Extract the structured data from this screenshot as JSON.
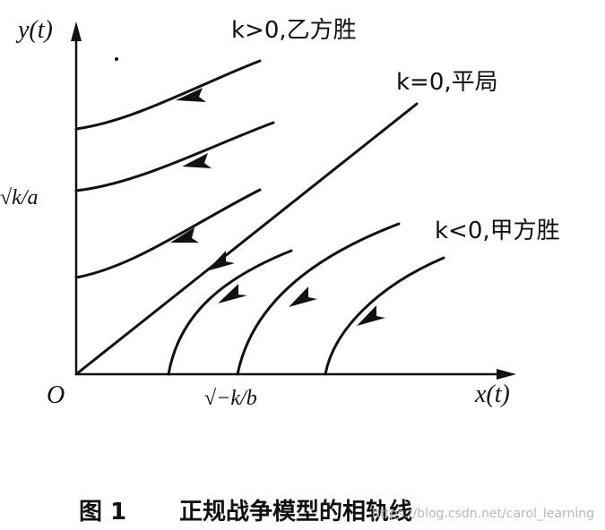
{
  "axes": {
    "y_label": "y(t)",
    "x_label": "x(t)",
    "origin_label": "O",
    "y_tick": "√k/a",
    "x_tick": "√−k/b"
  },
  "annotations": {
    "k_positive": "k>0,乙方胜",
    "k_zero": "k=0,平局",
    "k_negative": "k<0,甲方胜"
  },
  "caption": {
    "number": "图 1",
    "title": "正规战争模型的相轨线"
  },
  "watermark": "https://blog.csdn.net/carol_learning"
}
